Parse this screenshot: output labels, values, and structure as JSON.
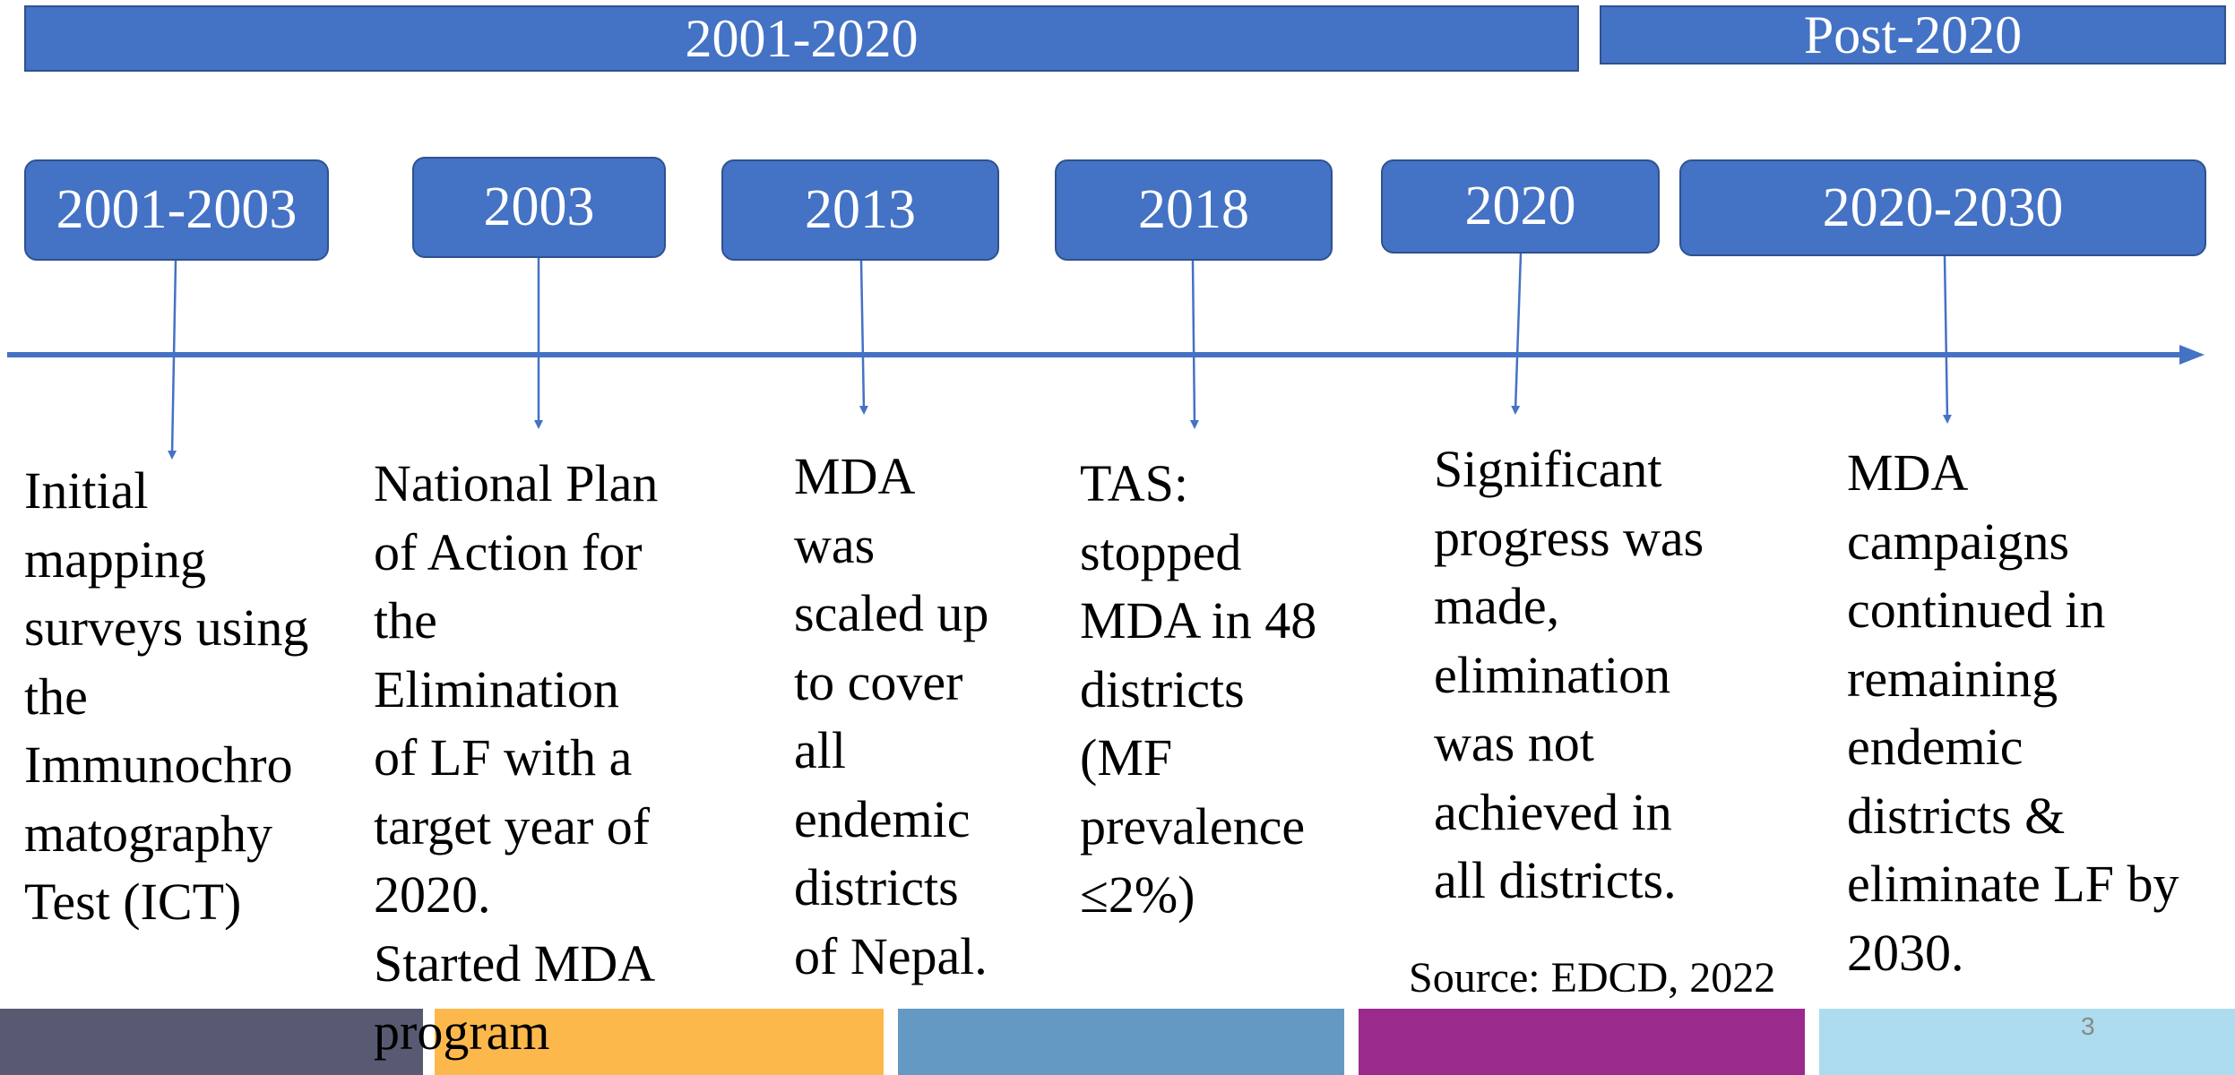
{
  "periods": [
    "2001-2020",
    "Post-2020"
  ],
  "milestones": [
    {
      "year": "2001-2003",
      "lines": [
        "Initial",
        "mapping",
        "surveys using",
        "the",
        "Immunochro",
        "matography",
        "Test (ICT)"
      ]
    },
    {
      "year": "2003",
      "lines": [
        "National Plan",
        "of Action for",
        "the",
        "Elimination",
        "of LF with a",
        "target year of",
        "2020.",
        "Started MDA",
        "program"
      ]
    },
    {
      "year": "2013",
      "lines": [
        "MDA",
        "was",
        "scaled up",
        "to cover",
        "all",
        "endemic",
        "districts",
        "of Nepal."
      ]
    },
    {
      "year": "2018",
      "lines": [
        "TAS:",
        "stopped",
        "MDA in 48",
        "districts",
        "(MF",
        "prevalence",
        "≤2%)"
      ]
    },
    {
      "year": "2020",
      "lines": [
        "Significant",
        "progress was",
        "made,",
        "elimination",
        "was not",
        "achieved in",
        "all districts."
      ]
    },
    {
      "year": "2020-2030",
      "lines": [
        "MDA",
        "campaigns",
        "continued in",
        "remaining",
        "endemic",
        "districts  &",
        "eliminate LF by",
        "2030."
      ]
    }
  ],
  "source": "Source: EDCD, 2022",
  "page_number": "3"
}
